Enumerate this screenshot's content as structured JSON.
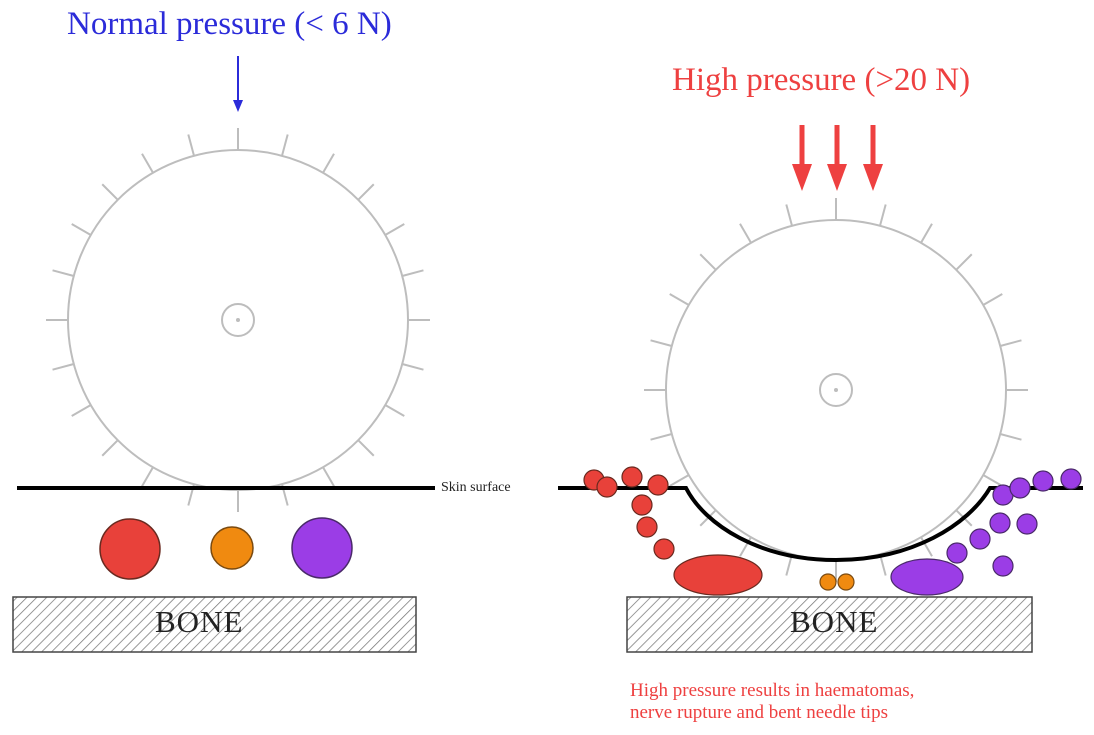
{
  "labels": {
    "normal_pressure": "Normal pressure (< 6 N)",
    "high_pressure": "High pressure (>20 N)",
    "skin_surface": "Skin surface",
    "bone_left": "BONE",
    "bone_right": "BONE",
    "note_line1": "High pressure results in haematomas,",
    "note_line2": "nerve rupture and bent needle tips"
  },
  "colors": {
    "normal": "#2b2bd9",
    "high": "#ee4040",
    "vessel_red": "#e8413a",
    "vessel_orange": "#f08a10",
    "vessel_purple": "#9b3de6",
    "wheel": "#bdbdbd",
    "skin": "#000000",
    "bone_hatch": "#666666"
  },
  "icons": [
    "arrow-down-icon",
    "pinwheel-icon",
    "bone-block-icon",
    "blood-vessel-icon",
    "nerve-icon"
  ]
}
